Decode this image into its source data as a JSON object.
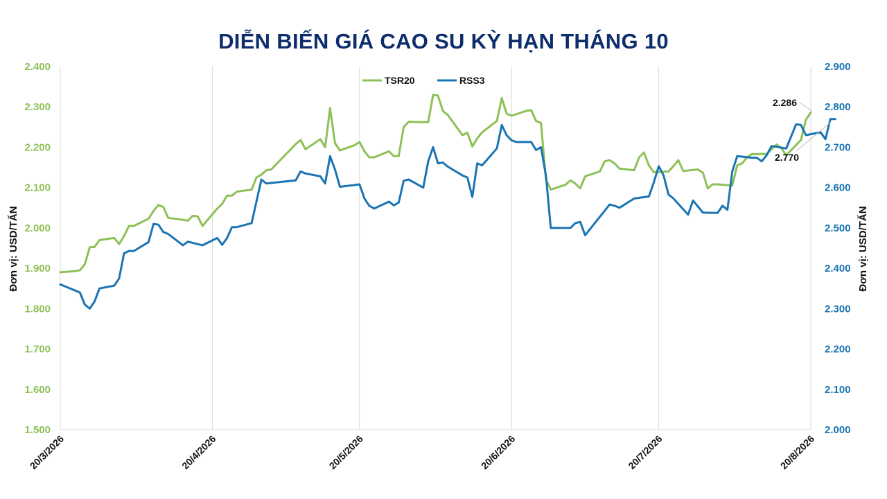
{
  "chart_data": {
    "type": "line",
    "title": "DIỄN BIẾN GIÁ CAO SU KỲ HẠN THÁNG 10",
    "y_left_label": "Đơn vị: USD/TẤN",
    "y_right_label": "Đơn vị: USD/TẤN",
    "y_left_range": [
      1500,
      2400
    ],
    "y_right_range": [
      2000,
      2900
    ],
    "y_left_ticks": [
      "1.500",
      "1.600",
      "1.700",
      "1.800",
      "1.900",
      "2.000",
      "2.100",
      "2.200",
      "2.300",
      "2.400"
    ],
    "y_right_ticks": [
      "2.000",
      "2.100",
      "2.200",
      "2.300",
      "2.400",
      "2.500",
      "2.600",
      "2.700",
      "2.800",
      "2.900"
    ],
    "x_range": [
      "2026-03-20",
      "2026-08-20"
    ],
    "x_ticks": [
      "20/3/2026",
      "20/4/2026",
      "20/5/2026",
      "20/6/2026",
      "20/7/2026",
      "20/8/2026"
    ],
    "grid": "vertical lines at x ticks",
    "legend_position": "top-center",
    "series": [
      {
        "name": "TSR20",
        "axis": "left",
        "color": "#8dc056",
        "points": [
          [
            "2026-03-20",
            1890
          ],
          [
            "2026-03-23",
            1893
          ],
          [
            "2026-03-24",
            1895
          ],
          [
            "2026-03-25",
            1910
          ],
          [
            "2026-03-26",
            1952
          ],
          [
            "2026-03-27",
            1953
          ],
          [
            "2026-03-28",
            1970
          ],
          [
            "2026-03-31",
            1975
          ],
          [
            "2026-04-01",
            1960
          ],
          [
            "2026-04-02",
            1980
          ],
          [
            "2026-04-03",
            2005
          ],
          [
            "2026-04-04",
            2005
          ],
          [
            "2026-04-07",
            2023
          ],
          [
            "2026-04-08",
            2042
          ],
          [
            "2026-04-09",
            2057
          ],
          [
            "2026-04-10",
            2052
          ],
          [
            "2026-04-11",
            2025
          ],
          [
            "2026-04-14",
            2020
          ],
          [
            "2026-04-15",
            2018
          ],
          [
            "2026-04-16",
            2030
          ],
          [
            "2026-04-17",
            2029
          ],
          [
            "2026-04-18",
            2005
          ],
          [
            "2026-04-21",
            2048
          ],
          [
            "2026-04-22",
            2060
          ],
          [
            "2026-04-23",
            2080
          ],
          [
            "2026-04-24",
            2080
          ],
          [
            "2026-04-25",
            2090
          ],
          [
            "2026-04-28",
            2095
          ],
          [
            "2026-04-29",
            2125
          ],
          [
            "2026-04-30",
            2132
          ],
          [
            "2026-05-01",
            2143
          ],
          [
            "2026-05-02",
            2145
          ],
          [
            "2026-05-07",
            2208
          ],
          [
            "2026-05-08",
            2218
          ],
          [
            "2026-05-09",
            2195
          ],
          [
            "2026-05-12",
            2220
          ],
          [
            "2026-05-13",
            2200
          ],
          [
            "2026-05-14",
            2297
          ],
          [
            "2026-05-15",
            2210
          ],
          [
            "2026-05-16",
            2192
          ],
          [
            "2026-05-19",
            2205
          ],
          [
            "2026-05-20",
            2213
          ],
          [
            "2026-05-21",
            2190
          ],
          [
            "2026-05-22",
            2175
          ],
          [
            "2026-05-23",
            2175
          ],
          [
            "2026-05-26",
            2190
          ],
          [
            "2026-05-27",
            2178
          ],
          [
            "2026-05-28",
            2178
          ],
          [
            "2026-05-29",
            2250
          ],
          [
            "2026-05-30",
            2263
          ],
          [
            "2026-06-02",
            2262
          ],
          [
            "2026-06-03",
            2262
          ],
          [
            "2026-06-04",
            2330
          ],
          [
            "2026-06-05",
            2328
          ],
          [
            "2026-06-06",
            2290
          ],
          [
            "2026-06-07",
            2280
          ],
          [
            "2026-06-10",
            2230
          ],
          [
            "2026-06-11",
            2236
          ],
          [
            "2026-06-12",
            2202
          ],
          [
            "2026-06-13",
            2222
          ],
          [
            "2026-06-14",
            2237
          ],
          [
            "2026-06-17",
            2265
          ],
          [
            "2026-06-18",
            2322
          ],
          [
            "2026-06-19",
            2283
          ],
          [
            "2026-06-20",
            2278
          ],
          [
            "2026-06-23",
            2290
          ],
          [
            "2026-06-24",
            2292
          ],
          [
            "2026-06-25",
            2265
          ],
          [
            "2026-06-26",
            2260
          ],
          [
            "2026-06-27",
            2120
          ],
          [
            "2026-06-28",
            2095
          ],
          [
            "2026-07-01",
            2107
          ],
          [
            "2026-07-02",
            2118
          ],
          [
            "2026-07-03",
            2110
          ],
          [
            "2026-07-04",
            2098
          ],
          [
            "2026-07-05",
            2128
          ],
          [
            "2026-07-08",
            2140
          ],
          [
            "2026-07-09",
            2165
          ],
          [
            "2026-07-10",
            2168
          ],
          [
            "2026-07-11",
            2160
          ],
          [
            "2026-07-12",
            2147
          ],
          [
            "2026-07-15",
            2143
          ],
          [
            "2026-07-16",
            2175
          ],
          [
            "2026-07-17",
            2187
          ],
          [
            "2026-07-18",
            2155
          ],
          [
            "2026-07-19",
            2138
          ],
          [
            "2026-07-22",
            2140
          ],
          [
            "2026-07-23",
            2153
          ],
          [
            "2026-07-24",
            2168
          ],
          [
            "2026-07-25",
            2141
          ],
          [
            "2026-07-28",
            2145
          ],
          [
            "2026-07-29",
            2137
          ],
          [
            "2026-07-30",
            2098
          ],
          [
            "2026-07-31",
            2108
          ],
          [
            "2026-08-01",
            2108
          ],
          [
            "2026-08-04",
            2105
          ],
          [
            "2026-08-05",
            2155
          ],
          [
            "2026-08-06",
            2160
          ],
          [
            "2026-08-07",
            2175
          ],
          [
            "2026-08-08",
            2183
          ],
          [
            "2026-08-11",
            2183
          ],
          [
            "2026-08-12",
            2195
          ],
          [
            "2026-08-13",
            2207
          ],
          [
            "2026-08-14",
            2198
          ],
          [
            "2026-08-15",
            2180
          ],
          [
            "2026-08-18",
            2218
          ],
          [
            "2026-08-19",
            2268
          ],
          [
            "2026-08-20",
            2286
          ]
        ]
      },
      {
        "name": "RSS3",
        "axis": "right",
        "color": "#1a74b3",
        "points": [
          [
            "2026-03-20",
            2360
          ],
          [
            "2026-03-24",
            2340
          ],
          [
            "2026-03-25",
            2310
          ],
          [
            "2026-03-26",
            2300
          ],
          [
            "2026-03-27",
            2318
          ],
          [
            "2026-03-28",
            2350
          ],
          [
            "2026-03-31",
            2357
          ],
          [
            "2026-04-01",
            2375
          ],
          [
            "2026-04-02",
            2437
          ],
          [
            "2026-04-03",
            2443
          ],
          [
            "2026-04-04",
            2443
          ],
          [
            "2026-04-07",
            2465
          ],
          [
            "2026-04-08",
            2510
          ],
          [
            "2026-04-09",
            2508
          ],
          [
            "2026-04-10",
            2490
          ],
          [
            "2026-04-11",
            2485
          ],
          [
            "2026-04-14",
            2457
          ],
          [
            "2026-04-15",
            2466
          ],
          [
            "2026-04-17",
            2460
          ],
          [
            "2026-04-18",
            2457
          ],
          [
            "2026-04-21",
            2475
          ],
          [
            "2026-04-22",
            2458
          ],
          [
            "2026-04-23",
            2475
          ],
          [
            "2026-04-24",
            2502
          ],
          [
            "2026-04-25",
            2502
          ],
          [
            "2026-04-28",
            2512
          ],
          [
            "2026-04-30",
            2620
          ],
          [
            "2026-05-01",
            2610
          ],
          [
            "2026-05-07",
            2618
          ],
          [
            "2026-05-08",
            2640
          ],
          [
            "2026-05-09",
            2635
          ],
          [
            "2026-05-12",
            2628
          ],
          [
            "2026-05-13",
            2610
          ],
          [
            "2026-05-14",
            2678
          ],
          [
            "2026-05-15",
            2645
          ],
          [
            "2026-05-16",
            2602
          ],
          [
            "2026-05-20",
            2608
          ],
          [
            "2026-05-21",
            2573
          ],
          [
            "2026-05-22",
            2555
          ],
          [
            "2026-05-23",
            2548
          ],
          [
            "2026-05-26",
            2565
          ],
          [
            "2026-05-27",
            2556
          ],
          [
            "2026-05-28",
            2563
          ],
          [
            "2026-05-29",
            2617
          ],
          [
            "2026-05-30",
            2620
          ],
          [
            "2026-06-02",
            2600
          ],
          [
            "2026-06-03",
            2665
          ],
          [
            "2026-06-04",
            2700
          ],
          [
            "2026-06-05",
            2660
          ],
          [
            "2026-06-06",
            2662
          ],
          [
            "2026-06-07",
            2652
          ],
          [
            "2026-06-10",
            2630
          ],
          [
            "2026-06-11",
            2625
          ],
          [
            "2026-06-12",
            2577
          ],
          [
            "2026-06-13",
            2660
          ],
          [
            "2026-06-14",
            2655
          ],
          [
            "2026-06-17",
            2697
          ],
          [
            "2026-06-18",
            2755
          ],
          [
            "2026-06-19",
            2730
          ],
          [
            "2026-06-20",
            2717
          ],
          [
            "2026-06-21",
            2713
          ],
          [
            "2026-06-24",
            2713
          ],
          [
            "2026-06-25",
            2693
          ],
          [
            "2026-06-26",
            2700
          ],
          [
            "2026-06-27",
            2630
          ],
          [
            "2026-06-28",
            2500
          ],
          [
            "2026-07-02",
            2500
          ],
          [
            "2026-07-03",
            2512
          ],
          [
            "2026-07-04",
            2515
          ],
          [
            "2026-07-05",
            2482
          ],
          [
            "2026-07-10",
            2558
          ],
          [
            "2026-07-11",
            2555
          ],
          [
            "2026-07-12",
            2550
          ],
          [
            "2026-07-15",
            2573
          ],
          [
            "2026-07-18",
            2578
          ],
          [
            "2026-07-19",
            2613
          ],
          [
            "2026-07-20",
            2653
          ],
          [
            "2026-07-21",
            2630
          ],
          [
            "2026-07-22",
            2583
          ],
          [
            "2026-07-23",
            2573
          ],
          [
            "2026-07-26",
            2533
          ],
          [
            "2026-07-27",
            2568
          ],
          [
            "2026-07-28",
            2553
          ],
          [
            "2026-07-29",
            2538
          ],
          [
            "2026-08-01",
            2537
          ],
          [
            "2026-08-02",
            2555
          ],
          [
            "2026-08-03",
            2545
          ],
          [
            "2026-08-04",
            2640
          ],
          [
            "2026-08-05",
            2678
          ],
          [
            "2026-08-08",
            2674
          ],
          [
            "2026-08-09",
            2674
          ],
          [
            "2026-08-10",
            2665
          ],
          [
            "2026-08-11",
            2680
          ],
          [
            "2026-08-12",
            2703
          ],
          [
            "2026-08-15",
            2697
          ],
          [
            "2026-08-17",
            2757
          ],
          [
            "2026-08-18",
            2755
          ],
          [
            "2026-08-19",
            2730
          ],
          [
            "2026-08-22",
            2737
          ],
          [
            "2026-08-23",
            2720
          ],
          [
            "2026-08-24",
            2770
          ],
          [
            "2026-08-25",
            2770
          ]
        ]
      }
    ],
    "annotations": [
      {
        "series": "TSR20",
        "text": "2.286"
      },
      {
        "series": "RSS3",
        "text": "2.770"
      }
    ]
  }
}
